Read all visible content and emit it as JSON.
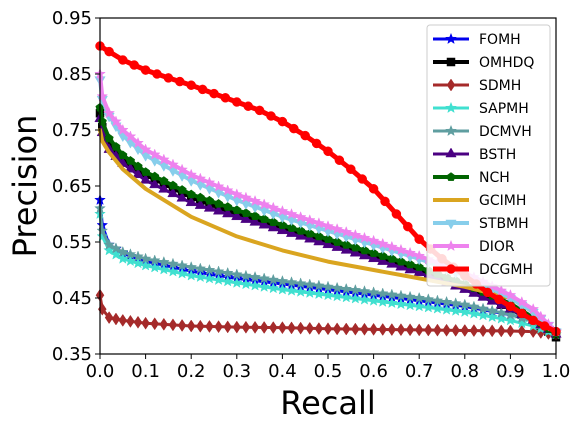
{
  "chart_data": {
    "type": "line",
    "title": "",
    "xlabel": "Recall",
    "ylabel": "Precision",
    "xlim": [
      0.0,
      1.0
    ],
    "ylim": [
      0.35,
      0.95
    ],
    "x_ticks": [
      "0.0",
      "0.1",
      "0.2",
      "0.3",
      "0.4",
      "0.5",
      "0.6",
      "0.7",
      "0.8",
      "0.9",
      "1.0"
    ],
    "y_ticks": [
      "0.35",
      "0.45",
      "0.55",
      "0.65",
      "0.75",
      "0.85",
      "0.95"
    ],
    "grid": false,
    "legend_position": "top-right",
    "series": [
      {
        "name": "FOMH",
        "color": "#0000ee",
        "marker": "star",
        "lw": 3,
        "x": [
          0,
          0.005,
          0.02,
          0.05,
          0.1,
          0.2,
          0.3,
          0.4,
          0.5,
          0.6,
          0.7,
          0.8,
          0.9,
          0.95,
          1.0
        ],
        "y": [
          0.625,
          0.58,
          0.545,
          0.53,
          0.515,
          0.498,
          0.485,
          0.475,
          0.465,
          0.455,
          0.445,
          0.435,
          0.42,
          0.41,
          0.39
        ]
      },
      {
        "name": "OMHDQ",
        "color": "#000000",
        "marker": "square",
        "lw": 4,
        "x": [
          0,
          0.005,
          0.02,
          0.05,
          0.1,
          0.2,
          0.3,
          0.4,
          0.5,
          0.6,
          0.7,
          0.8,
          0.9,
          0.95,
          1.0
        ],
        "y": [
          0.78,
          0.755,
          0.725,
          0.7,
          0.67,
          0.63,
          0.6,
          0.575,
          0.55,
          0.525,
          0.5,
          0.47,
          0.43,
          0.41,
          0.38
        ]
      },
      {
        "name": "SDMH",
        "color": "#a52a2a",
        "marker": "diamond",
        "lw": 3,
        "x": [
          0,
          0.005,
          0.02,
          0.05,
          0.1,
          0.2,
          0.3,
          0.4,
          0.5,
          0.6,
          0.7,
          0.8,
          0.9,
          0.95,
          1.0
        ],
        "y": [
          0.455,
          0.43,
          0.415,
          0.41,
          0.405,
          0.4,
          0.398,
          0.397,
          0.395,
          0.394,
          0.393,
          0.392,
          0.391,
          0.39,
          0.385
        ]
      },
      {
        "name": "SAPMH",
        "color": "#40e0d0",
        "marker": "star",
        "lw": 3,
        "x": [
          0,
          0.005,
          0.02,
          0.05,
          0.1,
          0.2,
          0.3,
          0.4,
          0.5,
          0.6,
          0.7,
          0.8,
          0.9,
          0.95,
          1.0
        ],
        "y": [
          0.6,
          0.56,
          0.535,
          0.52,
          0.508,
          0.49,
          0.477,
          0.465,
          0.455,
          0.445,
          0.435,
          0.425,
          0.41,
          0.4,
          0.385
        ]
      },
      {
        "name": "DCMVH",
        "color": "#5f9ea0",
        "marker": "star",
        "lw": 3,
        "x": [
          0,
          0.005,
          0.02,
          0.05,
          0.1,
          0.2,
          0.3,
          0.4,
          0.5,
          0.6,
          0.7,
          0.8,
          0.9,
          0.95,
          1.0
        ],
        "y": [
          0.61,
          0.57,
          0.545,
          0.532,
          0.52,
          0.505,
          0.492,
          0.48,
          0.47,
          0.46,
          0.45,
          0.438,
          0.42,
          0.408,
          0.39
        ]
      },
      {
        "name": "BSTH",
        "color": "#4b0082",
        "marker": "triangle",
        "lw": 3,
        "x": [
          0,
          0.005,
          0.02,
          0.05,
          0.1,
          0.2,
          0.3,
          0.4,
          0.5,
          0.6,
          0.7,
          0.8,
          0.9,
          0.95,
          1.0
        ],
        "y": [
          0.77,
          0.745,
          0.715,
          0.69,
          0.66,
          0.62,
          0.595,
          0.57,
          0.545,
          0.52,
          0.495,
          0.465,
          0.43,
          0.41,
          0.385
        ]
      },
      {
        "name": "NCH",
        "color": "#006400",
        "marker": "pentagon",
        "lw": 4,
        "x": [
          0,
          0.005,
          0.02,
          0.05,
          0.1,
          0.2,
          0.3,
          0.4,
          0.5,
          0.6,
          0.7,
          0.8,
          0.9,
          0.95,
          1.0
        ],
        "y": [
          0.79,
          0.765,
          0.735,
          0.705,
          0.675,
          0.635,
          0.607,
          0.58,
          0.555,
          0.53,
          0.505,
          0.475,
          0.44,
          0.415,
          0.385
        ]
      },
      {
        "name": "GCIMH",
        "color": "#daa520",
        "marker": "none",
        "lw": 4,
        "x": [
          0,
          0.005,
          0.02,
          0.05,
          0.1,
          0.2,
          0.3,
          0.4,
          0.5,
          0.6,
          0.7,
          0.8,
          0.9,
          0.95,
          1.0
        ],
        "y": [
          0.75,
          0.73,
          0.71,
          0.68,
          0.645,
          0.595,
          0.56,
          0.535,
          0.515,
          0.5,
          0.485,
          0.47,
          0.45,
          0.425,
          0.39
        ]
      },
      {
        "name": "STBMH",
        "color": "#87ceeb",
        "marker": "triangle-down",
        "lw": 4,
        "x": [
          0,
          0.005,
          0.02,
          0.05,
          0.1,
          0.2,
          0.3,
          0.4,
          0.5,
          0.6,
          0.7,
          0.8,
          0.9,
          0.95,
          1.0
        ],
        "y": [
          0.84,
          0.805,
          0.775,
          0.74,
          0.705,
          0.66,
          0.625,
          0.595,
          0.57,
          0.545,
          0.52,
          0.49,
          0.45,
          0.425,
          0.39
        ]
      },
      {
        "name": "DIOR",
        "color": "#ee82ee",
        "marker": "star",
        "lw": 4,
        "x": [
          0,
          0.005,
          0.02,
          0.05,
          0.1,
          0.2,
          0.3,
          0.4,
          0.5,
          0.6,
          0.7,
          0.8,
          0.9,
          0.95,
          1.0
        ],
        "y": [
          0.85,
          0.81,
          0.78,
          0.75,
          0.715,
          0.67,
          0.635,
          0.605,
          0.578,
          0.552,
          0.525,
          0.495,
          0.455,
          0.43,
          0.39
        ]
      },
      {
        "name": "DCGMH",
        "color": "#ff0000",
        "marker": "circle",
        "lw": 5,
        "x": [
          0,
          0.02,
          0.05,
          0.1,
          0.15,
          0.2,
          0.25,
          0.3,
          0.35,
          0.4,
          0.45,
          0.5,
          0.55,
          0.6,
          0.65,
          0.7,
          0.75,
          0.8,
          0.85,
          0.9,
          0.95,
          1.0
        ],
        "y": [
          0.9,
          0.89,
          0.875,
          0.857,
          0.843,
          0.83,
          0.815,
          0.8,
          0.785,
          0.765,
          0.74,
          0.712,
          0.68,
          0.645,
          0.6,
          0.555,
          0.52,
          0.49,
          0.46,
          0.435,
          0.41,
          0.39
        ]
      }
    ]
  }
}
